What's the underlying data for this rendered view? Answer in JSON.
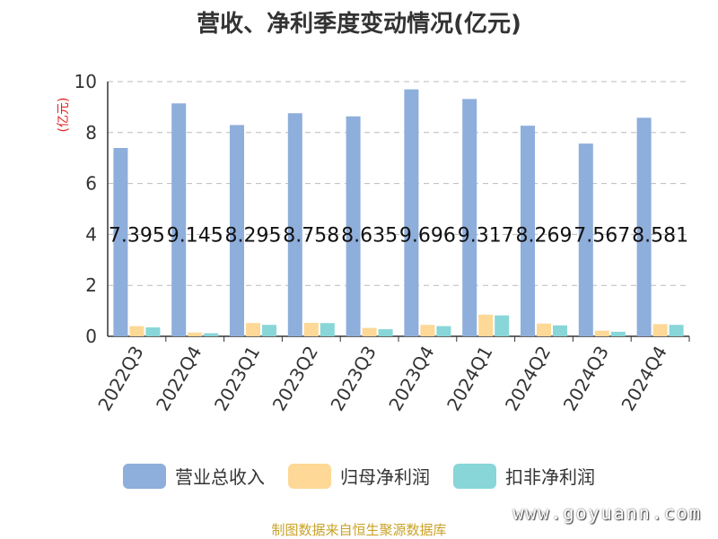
{
  "chart_data": {
    "type": "bar",
    "title": "营收、净利季度变动情况(亿元)",
    "ylabel": "(亿元)",
    "ylim": [
      0,
      10
    ],
    "yticks": [
      "0",
      "2",
      "4",
      "6",
      "8",
      "10"
    ],
    "grid": true,
    "legend_position": "bottom",
    "categories": [
      "2022Q3",
      "2022Q4",
      "2023Q1",
      "2023Q2",
      "2023Q3",
      "2023Q4",
      "2024Q1",
      "2024Q2",
      "2024Q3",
      "2024Q4"
    ],
    "series": [
      {
        "name": "营业总收入",
        "color": "#8eaedb",
        "values": [
          7.395,
          9.145,
          8.295,
          8.758,
          8.635,
          9.696,
          9.317,
          8.269,
          7.567,
          8.581
        ],
        "labels": [
          "7.395",
          "9.145",
          "8.295",
          "8.758",
          "8.635",
          "9.696",
          "9.317",
          "8.269",
          "7.567",
          "8.581"
        ]
      },
      {
        "name": "归母净利润",
        "color": "#fdd896",
        "values": [
          0.4,
          0.15,
          0.52,
          0.53,
          0.33,
          0.45,
          0.85,
          0.5,
          0.22,
          0.48
        ]
      },
      {
        "name": "扣非净利润",
        "color": "#88d6d8",
        "values": [
          0.35,
          0.12,
          0.45,
          0.52,
          0.28,
          0.4,
          0.82,
          0.43,
          0.18,
          0.45
        ]
      }
    ]
  },
  "footer": {
    "source": "制图数据来自恒生聚源数据库",
    "watermark": "www.goyuann.com"
  }
}
